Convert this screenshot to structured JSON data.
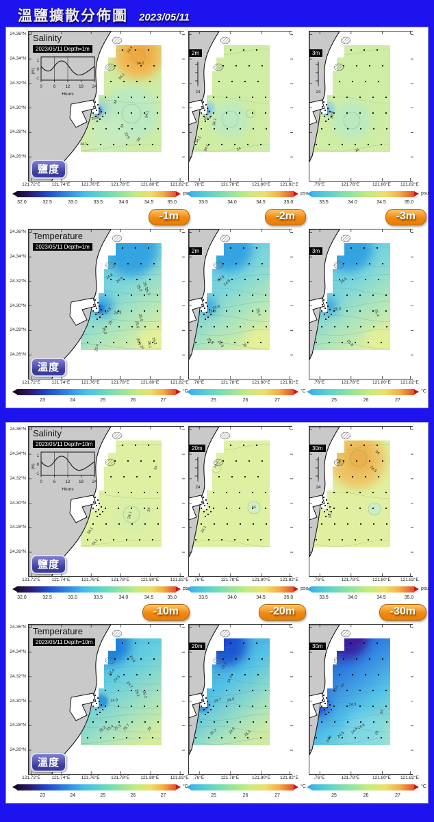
{
  "header": {
    "title": "溫鹽擴散分佈圖",
    "date": "2023/05/11"
  },
  "colors": {
    "background": "#1c13ee",
    "panel_bg": "#ffffff",
    "land": "#c9c9c9",
    "depth_badge": "#f08912",
    "variable_badge": "#4a4aae",
    "info_box_bg": "#060606",
    "info_box_text": "#ffffff"
  },
  "labels": {
    "salinity_badge": "鹽度",
    "temperature_badge": "溫度"
  },
  "tide_inset": {
    "ylabel": "(m)",
    "xlabel": "Hours",
    "yticks": [
      "1",
      "0",
      "-1"
    ],
    "xticks": [
      "0",
      "6",
      "12",
      "18",
      "24"
    ],
    "xtick_last": "24"
  },
  "axes": {
    "lat_ticks": [
      "24.36°N",
      "24.34°N",
      "24.32°N",
      "24.30°N",
      "24.28°N",
      "24.26°N"
    ],
    "lon_ticks_full": [
      "121.72°E",
      "121.74°E",
      "121.76°E",
      "121.78°E",
      "121.80°E",
      "121.82°E"
    ],
    "lon_ticks_crop": [
      ".76°E",
      "121.78°E",
      "121.80°E",
      "121.82°E"
    ]
  },
  "colorbars": {
    "salinity": {
      "unit": "psu",
      "full": [
        "32.0",
        "32.5",
        "33.0",
        "33.5",
        "34.0",
        "34.5",
        "35.0"
      ],
      "crop": [
        "33.5",
        "34.0",
        "34.5",
        "35.0"
      ]
    },
    "temperature": {
      "unit": "°C",
      "full": [
        "23",
        "24",
        "25",
        "26",
        "27"
      ],
      "crop": [
        "25",
        "26",
        "27"
      ]
    }
  },
  "chart_data": {
    "type": "contour-map-grid",
    "date": "2023/05/11",
    "lon_range": [
      "121.72°E",
      "121.83°E"
    ],
    "lat_range": [
      "24.25°N",
      "24.36°N"
    ],
    "salinity_scale_psu": [
      32.0,
      35.0
    ],
    "temperature_scale_c": [
      23,
      27
    ],
    "panels": [
      {
        "name": "depth-1-3m",
        "depth_badges": [
          "-1m",
          "-2m",
          "-3m"
        ]
      },
      {
        "name": "depth-10-30m",
        "depth_badges": [
          "-10m",
          "-20m",
          "-30m"
        ]
      }
    ],
    "maps": [
      {
        "id": "sal-1m",
        "panel": 1,
        "row": "salinity",
        "col": 0,
        "variable": "Salinity",
        "depth_badge": "-1m",
        "title": "Salinity",
        "info": "2023/05/11 Depth=1m",
        "geom": "full",
        "style": "sal-1m",
        "contours": [
          [
            "34.4",
            148,
            27,
            -55
          ],
          [
            "34.2",
            163,
            47,
            0
          ],
          [
            "34.1",
            136,
            66,
            -48
          ],
          [
            "34",
            127,
            103,
            -78
          ],
          [
            "33.8",
            97,
            127,
            -10
          ],
          [
            "34",
            137,
            138,
            -72
          ],
          [
            "33.9",
            143,
            152,
            62
          ],
          [
            "34.1",
            173,
            121,
            -84
          ],
          [
            "34",
            161,
            158,
            -55
          ],
          [
            "34.1",
            80,
            165,
            0
          ]
        ]
      },
      {
        "id": "sal-2m",
        "panel": 1,
        "row": "salinity",
        "col": 1,
        "variable": "Salinity",
        "depth_badge": "-2m",
        "title": null,
        "info": "2m",
        "geom": "crop",
        "style": "sal-2m",
        "contours": [
          [
            "33.9",
            27,
            127,
            -15
          ],
          [
            "34.1",
            38,
            132,
            -80
          ],
          [
            "34.1",
            14,
            158,
            -60
          ],
          [
            "34.1",
            26,
            170,
            -68
          ],
          [
            "34",
            73,
            172,
            -25
          ]
        ]
      },
      {
        "id": "sal-3m",
        "panel": 1,
        "row": "salinity",
        "col": 2,
        "variable": "Salinity",
        "depth_badge": "-3m",
        "title": null,
        "info": "3m",
        "geom": "crop",
        "style": "sal-3m",
        "contours": [
          [
            "33.8",
            34,
            122,
            -80
          ],
          [
            "34",
            70,
            174,
            -30
          ]
        ]
      },
      {
        "id": "tmp-1m",
        "panel": 1,
        "row": "temperature",
        "col": 0,
        "variable": "Temperature",
        "depth_badge": "-1m",
        "title": "Temperature",
        "info": "2023/05/11 Depth=1m",
        "geom": "full",
        "style": "tmp-1m",
        "contours": [
          [
            "24.8",
            118,
            69,
            -35
          ],
          [
            "24.9",
            133,
            74,
            -42
          ],
          [
            "25.1",
            170,
            82,
            68
          ],
          [
            "25.2",
            161,
            86,
            60
          ],
          [
            "25.3",
            173,
            91,
            62
          ],
          [
            "24.9",
            130,
            122,
            -5
          ],
          [
            "24.8",
            116,
            119,
            -45
          ],
          [
            "25",
            120,
            136,
            -60
          ],
          [
            "25.3",
            110,
            148,
            68
          ],
          [
            "25.5",
            163,
            129,
            76
          ],
          [
            "25.6",
            158,
            139,
            80
          ],
          [
            "25.4",
            100,
            173,
            -78
          ],
          [
            "25.9",
            160,
            164,
            72
          ],
          [
            "26.1",
            176,
            168,
            78
          ],
          [
            "26.2",
            183,
            163,
            68
          ],
          [
            "26",
            165,
            172,
            55
          ]
        ]
      },
      {
        "id": "tmp-2m",
        "panel": 1,
        "row": "temperature",
        "col": 1,
        "variable": "Temperature",
        "depth_badge": "-2m",
        "title": null,
        "info": "2m",
        "geom": "crop",
        "style": "tmp-2m",
        "contours": [
          [
            "24.5",
            47,
            72,
            -35
          ],
          [
            "24.8",
            56,
            78,
            -42
          ],
          [
            "24.9",
            40,
            114,
            -18
          ],
          [
            "25.3",
            34,
            120,
            -5
          ],
          [
            "25.8",
            31,
            163,
            42
          ],
          [
            "25.9",
            46,
            167,
            58
          ],
          [
            "26",
            81,
            169,
            48
          ],
          [
            "25.4",
            101,
            121,
            70
          ]
        ]
      },
      {
        "id": "tmp-3m",
        "panel": 1,
        "row": "temperature",
        "col": 2,
        "variable": "Temperature",
        "depth_badge": "-3m",
        "title": null,
        "info": "3m",
        "geom": "crop",
        "style": "tmp-3m",
        "contours": [
          [
            "24.5",
            50,
            75,
            -35
          ],
          [
            "25.3",
            41,
            117,
            -8
          ],
          [
            "25.8",
            59,
            166,
            45
          ],
          [
            "25.4",
            98,
            122,
            70
          ]
        ]
      },
      {
        "id": "sal-10m",
        "panel": 2,
        "row": "salinity",
        "col": 0,
        "variable": "Salinity",
        "depth_badge": "-10m",
        "title": "Salinity",
        "info": "2023/05/11 Depth=10m",
        "geom": "full",
        "style": "sal-10m",
        "contours": [
          [
            "34",
            186,
            60,
            -72
          ],
          [
            "34.1",
            148,
            129,
            -80
          ],
          [
            "34",
            176,
            121,
            -85
          ],
          [
            "34.1",
            90,
            152,
            -55
          ],
          [
            "34.1",
            97,
            169,
            -48
          ]
        ]
      },
      {
        "id": "sal-20m",
        "panel": 2,
        "row": "salinity",
        "col": 1,
        "variable": "Salinity",
        "depth_badge": "-20m",
        "title": null,
        "info": "20m",
        "geom": "crop",
        "style": "sal-20m",
        "contours": [
          [
            "34.1",
            40,
            55,
            -70
          ],
          [
            "34",
            95,
            118,
            -15
          ],
          [
            "34.1",
            22,
            150,
            -60
          ]
        ]
      },
      {
        "id": "sal-30m",
        "panel": 2,
        "row": "salinity",
        "col": 2,
        "variable": "Salinity",
        "depth_badge": "-30m",
        "title": null,
        "info": "30m",
        "geom": "crop",
        "style": "sal-30m",
        "contours": [
          [
            "34",
            44,
            52,
            -60
          ],
          [
            "34.3",
            93,
            62,
            42
          ],
          [
            "34.2",
            31,
            128,
            -85
          ],
          [
            "34",
            99,
            38,
            40
          ]
        ]
      },
      {
        "id": "tmp-10m",
        "panel": 2,
        "row": "temperature",
        "col": 0,
        "variable": "Temperature",
        "depth_badge": "-10m",
        "title": "Temperature",
        "info": "2023/05/11 Depth=10m",
        "geom": "full",
        "style": "tmp-10m",
        "contours": [
          [
            "24.8",
            151,
            50,
            58
          ],
          [
            "24.4",
            121,
            70,
            -40
          ],
          [
            "24.5",
            129,
            79,
            -45
          ],
          [
            "24.7",
            147,
            88,
            52
          ],
          [
            "24.9",
            125,
            111,
            -8
          ],
          [
            "25.1",
            158,
            100,
            68
          ],
          [
            "25.2",
            169,
            102,
            74
          ],
          [
            "25.4",
            119,
            151,
            -35
          ],
          [
            "25.5",
            130,
            150,
            -28
          ],
          [
            "25.3",
            108,
            153,
            -40
          ],
          [
            "25.7",
            143,
            150,
            -48
          ],
          [
            "26",
            177,
            152,
            -58
          ]
        ]
      },
      {
        "id": "tmp-20m",
        "panel": 2,
        "row": "temperature",
        "col": 1,
        "variable": "Temperature",
        "depth_badge": "-20m",
        "title": null,
        "info": "20m",
        "geom": "crop",
        "style": "tmp-20m",
        "contours": [
          [
            "24.3",
            60,
            80,
            -70
          ],
          [
            "24.7",
            42,
            111,
            -18
          ],
          [
            "24.9",
            61,
            110,
            -12
          ],
          [
            "25.3",
            36,
            157,
            -45
          ],
          [
            "24.9",
            63,
            155,
            -50
          ],
          [
            "25.4",
            86,
            159,
            -40
          ],
          [
            "24.5",
            52,
            60,
            -65
          ]
        ]
      },
      {
        "id": "tmp-30m",
        "panel": 2,
        "row": "temperature",
        "col": 2,
        "variable": "Temperature",
        "depth_badge": "-30m",
        "title": null,
        "info": "30m",
        "geom": "crop",
        "style": "tmp-30m",
        "contours": [
          [
            "23.5",
            39,
            94,
            -60
          ],
          [
            "24",
            49,
            89,
            -50
          ],
          [
            "24.3",
            63,
            117,
            -5
          ],
          [
            "24",
            106,
            127,
            -80
          ],
          [
            "24.9",
            76,
            149,
            -28
          ],
          [
            "25",
            99,
            158,
            -68
          ],
          [
            "24.3",
            29,
            167,
            -58
          ],
          [
            "24.5",
            46,
            161,
            -40
          ],
          [
            "24.8",
            66,
            155,
            -45
          ]
        ]
      }
    ]
  }
}
